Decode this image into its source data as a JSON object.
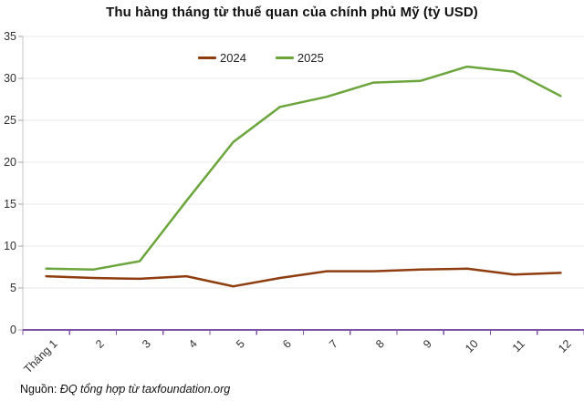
{
  "title": "Thu hàng tháng từ thuế quan của chính phủ Mỹ (tỷ USD)",
  "source": {
    "prefix": "Nguồn:",
    "text": "ĐQ tổng hợp từ taxfoundation.org"
  },
  "colors": {
    "series_2024": "#8f3c0f",
    "series_2025": "#6ba53c",
    "x_axis": "#7d53a6",
    "y_axis_line": "#c4c4c8",
    "gridline": "#e8e8e8",
    "y_tick": "#a6a6a6",
    "title_text": "#111111",
    "label_text": "#303030"
  },
  "chart_data": {
    "type": "line",
    "title": "Thu hàng tháng từ thuế quan của chính phủ Mỹ (tỷ USD)",
    "categories": [
      "Tháng 1",
      "2",
      "3",
      "4",
      "5",
      "6",
      "7",
      "8",
      "9",
      "10",
      "11",
      "12"
    ],
    "series": [
      {
        "name": "2024",
        "color": "#8f3c0f",
        "values": [
          6.4,
          6.2,
          6.1,
          6.4,
          5.2,
          6.2,
          7.0,
          7.0,
          7.2,
          7.3,
          6.6,
          6.8
        ]
      },
      {
        "name": "2025",
        "color": "#6ba53c",
        "values": [
          7.3,
          7.2,
          8.2,
          15.4,
          22.4,
          26.6,
          27.8,
          29.5,
          29.7,
          31.4,
          30.8,
          27.9
        ]
      }
    ],
    "xlabel": "",
    "ylabel": "",
    "ylim": [
      0,
      35
    ],
    "yticks": [
      0,
      5,
      10,
      15,
      20,
      25,
      30,
      35
    ],
    "grid": true,
    "legend_position": "top",
    "x_label_rotation_deg": -45
  }
}
